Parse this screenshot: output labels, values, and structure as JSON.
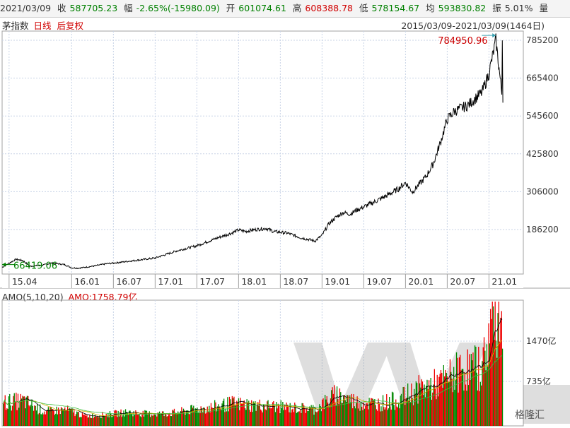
{
  "header": {
    "date": "2021/03/09",
    "close_label": "收",
    "close": "587705.23",
    "change_label": "幅",
    "change": "-2.65%(-15980.09)",
    "open_label": "开",
    "open": "601074.61",
    "high_label": "高",
    "high": "608388.78",
    "low_label": "低",
    "low": "578154.67",
    "avg_label": "均",
    "avg": "593830.82",
    "amp_label": "振",
    "amp": "5.01%",
    "extra_label": "量"
  },
  "subheader": {
    "index_name": "茅指数",
    "period": "日线",
    "adjust": "后复权",
    "date_range": "2015/03/09-2021/03/09(1464日)"
  },
  "volume_header": {
    "indicator": "AMO(5,10,20)",
    "value": "AMO:1758.79亿"
  },
  "watermark": {
    "logo_text": "格隆汇"
  },
  "colors": {
    "price_line": "#000000",
    "up_bar": "#ee0000",
    "down_bar": "#008800",
    "ma5": "#000000",
    "ma10": "#d4b000",
    "ma20": "#40c040",
    "grid": "#c8d3e6",
    "axis_text": "#333333",
    "max_label": "#cc0000",
    "min_label": "#008000",
    "arrow": "#3aa0b0"
  },
  "chart_data": [
    {
      "type": "line",
      "title": "",
      "x_ticks": [
        "15.04",
        "16.01",
        "16.07",
        "17.01",
        "17.07",
        "18.01",
        "18.07",
        "19.01",
        "19.07",
        "20.01",
        "20.07",
        "21.01"
      ],
      "y_ticks": [
        186200,
        306000,
        425800,
        545600,
        665400,
        785200
      ],
      "ylim": [
        110000,
        820000
      ],
      "grid": true,
      "annotations": {
        "max": "784950.96",
        "min": "66419.06"
      },
      "series": [
        {
          "x": [
            "2015-03",
            "2015-04",
            "2015-05",
            "2015-06",
            "2015-07",
            "2015-08",
            "2015-09",
            "2015-10",
            "2015-11",
            "2015-12",
            "2016-01",
            "2016-02",
            "2016-04",
            "2016-06",
            "2016-07",
            "2016-10",
            "2017-01",
            "2017-04",
            "2017-07",
            "2017-10",
            "2017-12",
            "2018-01",
            "2018-02",
            "2018-03",
            "2018-05",
            "2018-06",
            "2018-08",
            "2018-10",
            "2018-12",
            "2019-01",
            "2019-02",
            "2019-03",
            "2019-04",
            "2019-05",
            "2019-06",
            "2019-08",
            "2019-10",
            "2019-12",
            "2020-01",
            "2020-02",
            "2020-03",
            "2020-04",
            "2020-05",
            "2020-06",
            "2020-07",
            "2020-08",
            "2020-10",
            "2020-12",
            "2021-01",
            "2021-02",
            "2021-03"
          ],
          "values": [
            66419,
            80000,
            92000,
            88000,
            70000,
            72000,
            74000,
            80000,
            78000,
            75000,
            65000,
            64000,
            70000,
            78000,
            80000,
            88000,
            96000,
            118000,
            135000,
            160000,
            175000,
            185000,
            180000,
            185000,
            190000,
            180000,
            175000,
            160000,
            150000,
            168000,
            205000,
            225000,
            240000,
            235000,
            248000,
            268000,
            290000,
            315000,
            335000,
            305000,
            330000,
            355000,
            395000,
            460000,
            535000,
            560000,
            580000,
            620000,
            680000,
            784950,
            587705
          ]
        }
      ]
    },
    {
      "type": "bar",
      "title": "",
      "y_ticks_labels": [
        "735亿",
        "1470亿"
      ],
      "y_ticks": [
        735,
        1470
      ],
      "ylim": [
        0,
        2200
      ],
      "legend": [
        "AMO(5,10,20)"
      ],
      "series": [
        {
          "name": "AMO",
          "x": [
            "2015-03",
            "2015-06",
            "2015-09",
            "2015-12",
            "2016-03",
            "2016-06",
            "2016-09",
            "2016-12",
            "2017-03",
            "2017-06",
            "2017-09",
            "2017-12",
            "2018-03",
            "2018-06",
            "2018-09",
            "2018-12",
            "2019-03",
            "2019-06",
            "2019-09",
            "2019-12",
            "2020-03",
            "2020-06",
            "2020-09",
            "2020-12",
            "2021-01",
            "2021-02",
            "2021-03"
          ],
          "values": [
            350,
            380,
            180,
            220,
            100,
            130,
            170,
            140,
            150,
            210,
            260,
            330,
            300,
            280,
            250,
            230,
            500,
            350,
            330,
            400,
            600,
            700,
            950,
            1000,
            1650,
            2100,
            1758.79
          ]
        }
      ]
    }
  ]
}
